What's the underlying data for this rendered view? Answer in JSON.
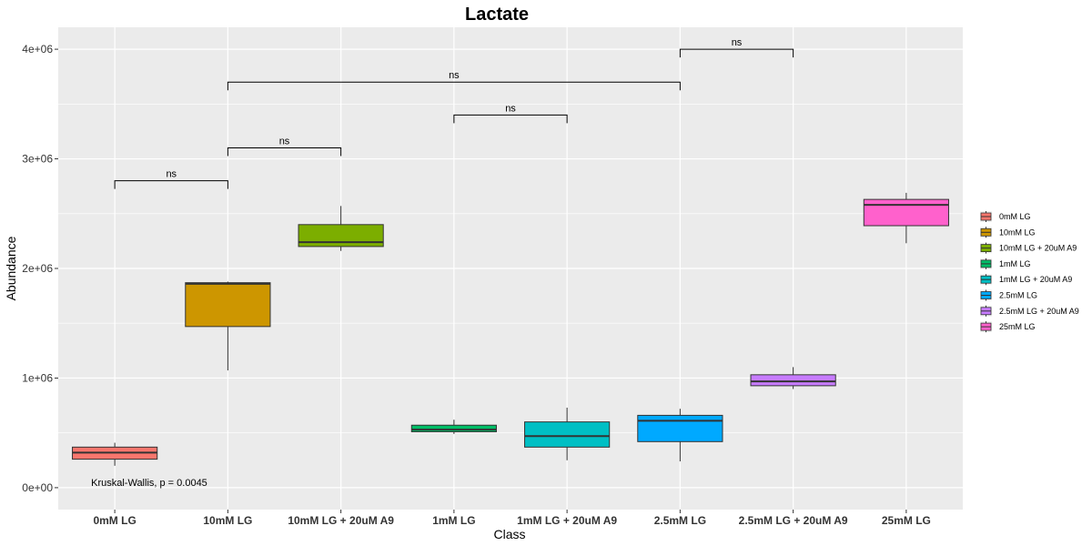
{
  "chart_data": {
    "type": "boxplot",
    "title": "Lactate",
    "xlabel": "Class",
    "ylabel": "Abundance",
    "ylim": [
      -200000,
      4200000
    ],
    "y_ticks": [
      0,
      1000000,
      2000000,
      3000000,
      4000000
    ],
    "y_tick_labels": [
      "0e+00",
      "1e+06",
      "2e+06",
      "3e+06",
      "4e+06"
    ],
    "grid": true,
    "legend_position": "right",
    "categories": [
      "0mM LG",
      "10mM LG",
      "10mM LG + 20uM A9",
      "1mM LG",
      "1mM LG + 20uM A9",
      "2.5mM LG",
      "2.5mM LG + 20uM A9",
      "25mM LG"
    ],
    "legend": [
      "0mM LG",
      "10mM LG",
      "10mM LG + 20uM A9",
      "1mM LG",
      "1mM LG + 20uM A9",
      "2.5mM LG",
      "2.5mM LG + 20uM A9",
      "25mM LG"
    ],
    "colors": [
      "#F8766D",
      "#CD9600",
      "#7CAE00",
      "#00BE67",
      "#00BFC4",
      "#00A9FF",
      "#C77CFF",
      "#FF61CC"
    ],
    "boxes": [
      {
        "name": "0mM LG",
        "min": 200000,
        "q1": 260000,
        "median": 320000,
        "q3": 370000,
        "max": 410000
      },
      {
        "name": "10mM LG",
        "min": 1070000,
        "q1": 1470000,
        "median": 1860000,
        "q3": 1870000,
        "max": 1880000
      },
      {
        "name": "10mM LG + 20uM A9",
        "min": 2160000,
        "q1": 2200000,
        "median": 2240000,
        "q3": 2400000,
        "max": 2570000
      },
      {
        "name": "1mM LG",
        "min": 490000,
        "q1": 510000,
        "median": 530000,
        "q3": 570000,
        "max": 620000
      },
      {
        "name": "1mM LG + 20uM A9",
        "min": 250000,
        "q1": 370000,
        "median": 470000,
        "q3": 600000,
        "max": 730000
      },
      {
        "name": "2.5mM LG",
        "min": 240000,
        "q1": 420000,
        "median": 610000,
        "q3": 660000,
        "max": 720000
      },
      {
        "name": "2.5mM LG + 20uM A9",
        "min": 900000,
        "q1": 930000,
        "median": 970000,
        "q3": 1030000,
        "max": 1100000
      },
      {
        "name": "25mM LG",
        "min": 2230000,
        "q1": 2390000,
        "median": 2580000,
        "q3": 2630000,
        "max": 2690000
      }
    ],
    "comparisons": [
      {
        "from": 0,
        "to": 1,
        "y": 2800000,
        "label": "ns"
      },
      {
        "from": 1,
        "to": 2,
        "y": 3100000,
        "label": "ns"
      },
      {
        "from": 3,
        "to": 4,
        "y": 3400000,
        "label": "ns"
      },
      {
        "from": 1,
        "to": 5,
        "y": 3700000,
        "label": "ns"
      },
      {
        "from": 5,
        "to": 6,
        "y": 4000000,
        "label": "ns"
      }
    ],
    "annotation": {
      "text": "Kruskal-Wallis, p = 0.0045",
      "x_category": 0,
      "y": 0
    }
  }
}
